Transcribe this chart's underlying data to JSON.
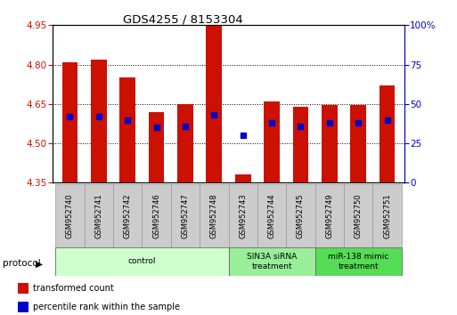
{
  "title": "GDS4255 / 8153304",
  "samples": [
    "GSM952740",
    "GSM952741",
    "GSM952742",
    "GSM952746",
    "GSM952747",
    "GSM952748",
    "GSM952743",
    "GSM952744",
    "GSM952745",
    "GSM952749",
    "GSM952750",
    "GSM952751"
  ],
  "transformed_count": [
    4.81,
    4.82,
    4.75,
    4.62,
    4.65,
    4.95,
    4.38,
    4.66,
    4.64,
    4.645,
    4.645,
    4.72
  ],
  "percentile_rank": [
    42,
    42,
    40,
    35,
    36,
    43,
    30,
    38,
    36,
    38,
    38,
    40
  ],
  "ylim_left": [
    4.35,
    4.95
  ],
  "ylim_right": [
    0,
    100
  ],
  "yticks_left": [
    4.35,
    4.5,
    4.65,
    4.8,
    4.95
  ],
  "yticks_right": [
    0,
    25,
    50,
    75,
    100
  ],
  "bar_color": "#cc1100",
  "dot_color": "#0000cc",
  "groups": [
    {
      "label": "control",
      "start": 0,
      "end": 6,
      "color": "#ccffcc"
    },
    {
      "label": "SIN3A siRNA\ntreatment",
      "start": 6,
      "end": 9,
      "color": "#99ee99"
    },
    {
      "label": "miR-138 mimic\ntreatment",
      "start": 9,
      "end": 12,
      "color": "#55dd55"
    }
  ],
  "protocol_label": "protocol",
  "legend_items": [
    {
      "label": "transformed count",
      "color": "#cc1100"
    },
    {
      "label": "percentile rank within the sample",
      "color": "#0000cc"
    }
  ],
  "bar_width": 0.55,
  "label_bg": "#cccccc",
  "fig_width": 5.13,
  "fig_height": 3.54,
  "dpi": 100
}
